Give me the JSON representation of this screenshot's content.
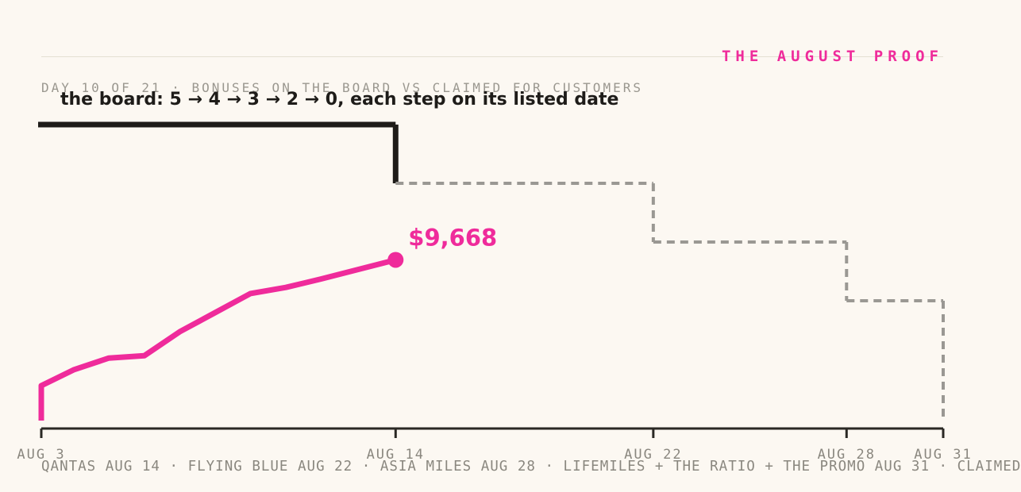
{
  "header": {
    "brand": "THE AUGUST PROOF",
    "kicker": "DAY 10 OF 21 · BONUSES ON THE BOARD VS CLAIMED FOR CUSTOMERS",
    "annotation": "the board: 5 → 4 → 3 → 2 → 0, each step on its listed date"
  },
  "footer": {
    "text": "QANTAS AUG 14 · FLYING BLUE AUG 22 · ASIA MILES AUG 28 · LIFEMILES + THE RATIO + THE PROMO AUG 31 · CLAIMED"
  },
  "colors": {
    "background": "#fcf8f2",
    "claimed": "#ef2b9b",
    "board": "#1e1c19",
    "board_future": "#9a9893",
    "axis": "#2a2824",
    "muted": "#8a877f"
  },
  "chart_data": {
    "type": "line",
    "x_domain": [
      "2025-08-03",
      "2025-08-31"
    ],
    "x_ticks": [
      {
        "date": "2025-08-03",
        "label": "AUG 3"
      },
      {
        "date": "2025-08-14",
        "label": "AUG 14"
      },
      {
        "date": "2025-08-22",
        "label": "AUG 22"
      },
      {
        "date": "2025-08-28",
        "label": "AUG 28"
      },
      {
        "date": "2025-08-31",
        "label": "AUG 31"
      }
    ],
    "grid": false,
    "series": [
      {
        "role": "board",
        "kind": "step",
        "values": [
          {
            "date": "2025-08-03",
            "count": 5
          },
          {
            "date": "2025-08-14",
            "count": 4
          },
          {
            "date": "2025-08-22",
            "count": 3
          },
          {
            "date": "2025-08-28",
            "count": 2
          },
          {
            "date": "2025-08-31",
            "count": 0
          }
        ],
        "solid_until": "2025-08-14"
      },
      {
        "role": "claimed",
        "kind": "line",
        "end_label": "$9,668",
        "values": [
          {
            "date": "2025-08-03",
            "usd": 0
          },
          {
            "date": "2025-08-03",
            "usd": 2100
          },
          {
            "date": "2025-08-04",
            "usd": 3050
          },
          {
            "date": "2025-08-05",
            "usd": 3760
          },
          {
            "date": "2025-08-06",
            "usd": 3900
          },
          {
            "date": "2025-08-07",
            "usd": 5340
          },
          {
            "date": "2025-08-08",
            "usd": 6490
          },
          {
            "date": "2025-08-09",
            "usd": 7640
          },
          {
            "date": "2025-08-10",
            "usd": 8010
          },
          {
            "date": "2025-08-11",
            "usd": 8520
          },
          {
            "date": "2025-08-14",
            "usd": 9668
          }
        ]
      }
    ]
  }
}
